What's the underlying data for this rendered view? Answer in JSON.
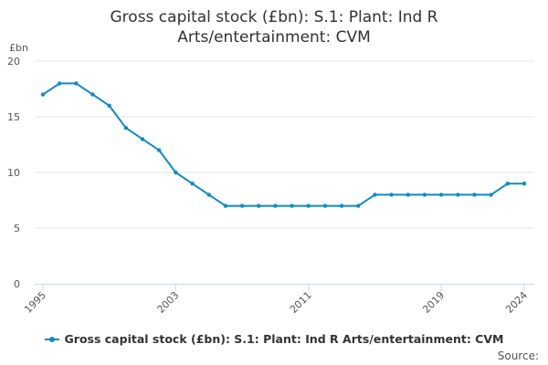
{
  "chart_data": {
    "type": "line",
    "title_line1": "Gross capital stock (£bn): S.1: Plant: Ind R",
    "title_line2": "Arts/entertainment: CVM",
    "ylabel": "£bn",
    "xlabel": "",
    "x": [
      1995,
      1996,
      1997,
      1998,
      1999,
      2000,
      2001,
      2002,
      2003,
      2004,
      2005,
      2006,
      2007,
      2008,
      2009,
      2010,
      2011,
      2012,
      2013,
      2014,
      2015,
      2016,
      2017,
      2018,
      2019,
      2020,
      2021,
      2022,
      2023,
      2024
    ],
    "series": [
      {
        "name": "Gross capital stock (£bn): S.1: Plant: Ind R Arts/entertainment: CVM",
        "color": "#0F8AC6",
        "values": [
          17,
          18,
          18,
          17,
          16,
          14,
          13,
          12,
          10,
          9,
          8,
          7,
          7,
          7,
          7,
          7,
          7,
          7,
          7,
          7,
          8,
          8,
          8,
          8,
          8,
          8,
          8,
          8,
          9,
          9
        ]
      }
    ],
    "ylim": [
      0,
      20
    ],
    "yticks": [
      "0",
      "5",
      "10",
      "15",
      "20"
    ],
    "ytick_values": [
      0,
      5,
      10,
      15,
      20
    ],
    "xticks": [
      "1995",
      "2003",
      "2011",
      "2019",
      "2024"
    ],
    "xtick_values": [
      1995,
      2003,
      2011,
      2019,
      2024
    ],
    "grid": true,
    "legend_position": "bottom"
  },
  "source_label": "Source:"
}
